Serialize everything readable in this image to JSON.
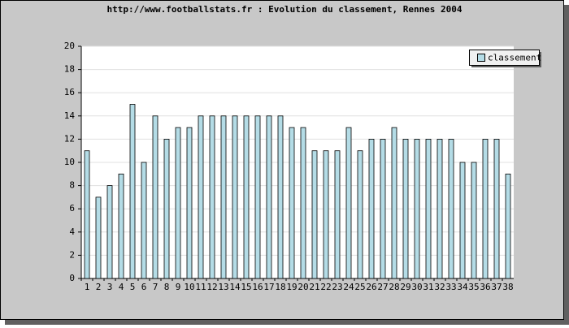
{
  "chart_data": {
    "type": "bar",
    "title": "http://www.footballstats.fr : Evolution du classement, Rennes 2004",
    "categories": [
      "1",
      "2",
      "3",
      "4",
      "5",
      "6",
      "7",
      "8",
      "9",
      "10",
      "11",
      "12",
      "13",
      "14",
      "15",
      "16",
      "17",
      "18",
      "19",
      "20",
      "21",
      "22",
      "23",
      "24",
      "25",
      "26",
      "27",
      "28",
      "29",
      "30",
      "31",
      "32",
      "33",
      "34",
      "35",
      "36",
      "37",
      "38"
    ],
    "series": [
      {
        "name": "classement",
        "color": "#b4dce6",
        "values": [
          11,
          7,
          8,
          9,
          15,
          10,
          14,
          12,
          13,
          13,
          14,
          14,
          14,
          14,
          14,
          14,
          14,
          14,
          13,
          13,
          11,
          11,
          11,
          13,
          11,
          12,
          12,
          13,
          12,
          12,
          12,
          12,
          12,
          10,
          10,
          12,
          12,
          9
        ]
      }
    ],
    "ylim": [
      0,
      20
    ],
    "yticks": [
      0,
      2,
      4,
      6,
      8,
      10,
      12,
      14,
      16,
      18,
      20
    ],
    "grid": true
  }
}
